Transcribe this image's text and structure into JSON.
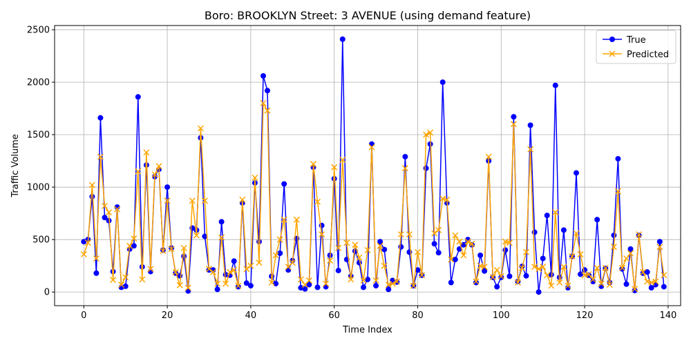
{
  "chart_data": {
    "type": "line",
    "title": "Boro: BROOKLYN Street: 3 AVENUE (using demand feature)",
    "xlabel": "Time Index",
    "ylabel": "Traffic Volume",
    "xlim": [
      -7,
      143
    ],
    "ylim": [
      -130,
      2540
    ],
    "xticks": [
      0,
      20,
      40,
      60,
      80,
      100,
      120,
      140
    ],
    "yticks": [
      0,
      500,
      1000,
      1500,
      2000,
      2500
    ],
    "grid": true,
    "legend_position": "top-right",
    "series": [
      {
        "name": "True",
        "color": "#0000ff",
        "marker": "circle",
        "values": [
          480,
          500,
          910,
          180,
          1660,
          710,
          680,
          195,
          810,
          45,
          55,
          410,
          440,
          1860,
          240,
          1210,
          195,
          1100,
          1170,
          400,
          1000,
          420,
          180,
          155,
          340,
          10,
          610,
          590,
          1470,
          530,
          210,
          210,
          25,
          670,
          165,
          160,
          295,
          50,
          850,
          85,
          60,
          1040,
          480,
          2060,
          1920,
          150,
          80,
          370,
          1030,
          210,
          300,
          510,
          40,
          30,
          70,
          1190,
          45,
          635,
          50,
          350,
          1080,
          205,
          2410,
          310,
          150,
          390,
          280,
          45,
          120,
          1410,
          60,
          480,
          405,
          25,
          110,
          95,
          430,
          1290,
          380,
          60,
          210,
          160,
          1180,
          1410,
          460,
          375,
          2000,
          850,
          90,
          310,
          410,
          450,
          500,
          450,
          90,
          350,
          200,
          1250,
          140,
          50,
          140,
          400,
          150,
          1670,
          100,
          245,
          155,
          1590,
          570,
          0,
          320,
          730,
          165,
          1970,
          140,
          590,
          40,
          340,
          1135,
          170,
          210,
          160,
          100,
          690,
          55,
          225,
          90,
          540,
          1270,
          220,
          75,
          410,
          15,
          540,
          180,
          190,
          40,
          70,
          480,
          50
        ]
      },
      {
        "name": "Predicted",
        "color": "#ffa500",
        "marker": "x",
        "values": [
          360,
          470,
          1020,
          320,
          1290,
          820,
          760,
          115,
          790,
          70,
          140,
          440,
          510,
          1150,
          120,
          1330,
          220,
          1120,
          1200,
          390,
          870,
          410,
          190,
          65,
          420,
          40,
          870,
          540,
          1560,
          870,
          220,
          190,
          80,
          520,
          80,
          190,
          210,
          60,
          880,
          220,
          250,
          1090,
          280,
          1800,
          1730,
          90,
          350,
          500,
          690,
          240,
          280,
          690,
          120,
          70,
          110,
          1220,
          860,
          550,
          80,
          300,
          1190,
          420,
          1260,
          470,
          120,
          450,
          330,
          110,
          400,
          1380,
          110,
          440,
          250,
          70,
          80,
          100,
          550,
          1180,
          550,
          60,
          380,
          160,
          1500,
          1520,
          560,
          590,
          890,
          880,
          310,
          540,
          480,
          350,
          480,
          460,
          100,
          250,
          240,
          1290,
          140,
          210,
          150,
          480,
          470,
          1600,
          90,
          230,
          380,
          1360,
          240,
          220,
          240,
          160,
          60,
          760,
          90,
          240,
          60,
          340,
          560,
          360,
          160,
          170,
          120,
          230,
          80,
          230,
          70,
          430,
          960,
          230,
          320,
          370,
          30,
          550,
          190,
          100,
          90,
          100,
          430,
          160
        ]
      }
    ]
  }
}
